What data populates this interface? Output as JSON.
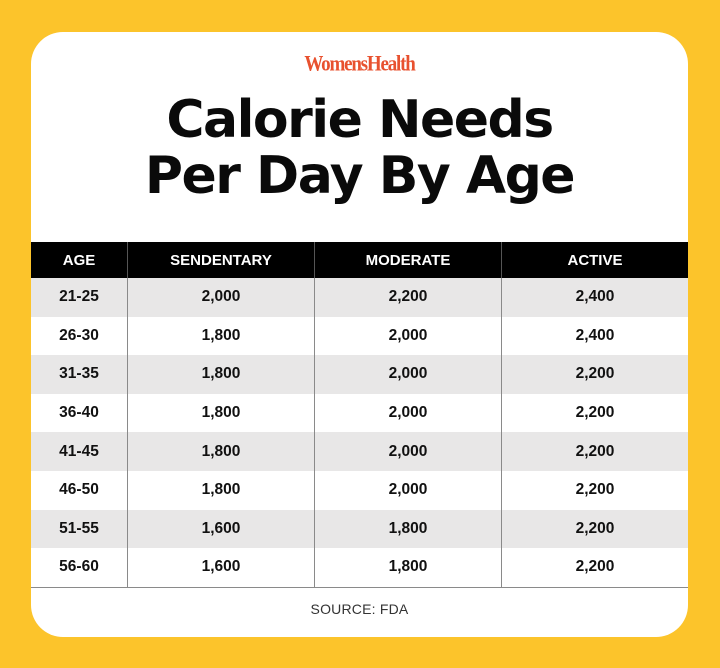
{
  "brand": "WomensHealth",
  "title": {
    "line1": "Calorie Needs",
    "line2": "Per Day By Age"
  },
  "colors": {
    "background": "#fcc42b",
    "card": "#ffffff",
    "brand": "#e8512f",
    "header_bg": "#000000",
    "row_alt": "#e8e7e7"
  },
  "table": {
    "headers": [
      "AGE",
      "SENDENTARY",
      "MODERATE",
      "ACTIVE"
    ],
    "rows": [
      [
        "21-25",
        "2,000",
        "2,200",
        "2,400"
      ],
      [
        "26-30",
        "1,800",
        "2,000",
        "2,400"
      ],
      [
        "31-35",
        "1,800",
        "2,000",
        "2,200"
      ],
      [
        "36-40",
        "1,800",
        "2,000",
        "2,200"
      ],
      [
        "41-45",
        "1,800",
        "2,000",
        "2,200"
      ],
      [
        "46-50",
        "1,800",
        "2,000",
        "2,200"
      ],
      [
        "51-55",
        "1,600",
        "1,800",
        "2,200"
      ],
      [
        "56-60",
        "1,600",
        "1,800",
        "2,200"
      ]
    ]
  },
  "source": "SOURCE: FDA"
}
